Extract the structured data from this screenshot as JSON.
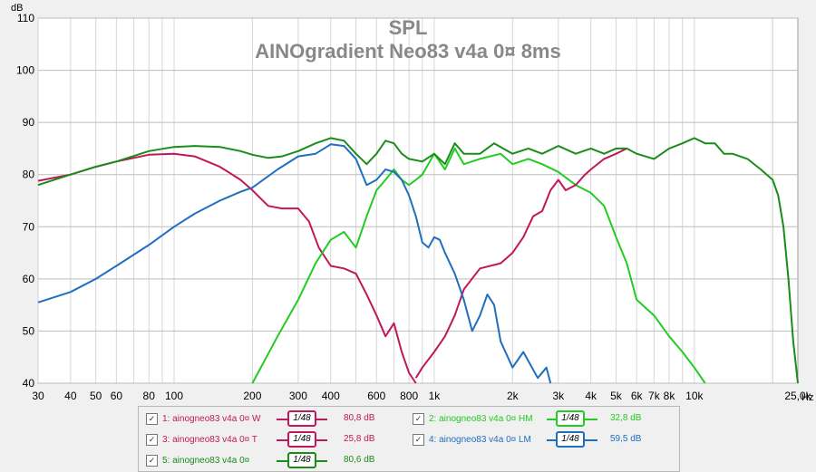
{
  "chart_data": {
    "type": "line",
    "title": "SPL",
    "subtitle": "AINOgradient Neo83 v4a 0¤ 8ms",
    "ylabel": "dB",
    "xlabel": "Hz",
    "xscale": "log",
    "xlim": [
      30,
      25000
    ],
    "ylim": [
      40,
      110
    ],
    "grid": true,
    "y_ticks": [
      "110",
      "100",
      "90",
      "80",
      "70",
      "60",
      "50",
      "40"
    ],
    "x_ticks": [
      {
        "v": 30,
        "label": "30"
      },
      {
        "v": 40,
        "label": "40"
      },
      {
        "v": 50,
        "label": "50"
      },
      {
        "v": 60,
        "label": "60"
      },
      {
        "v": 80,
        "label": "80"
      },
      {
        "v": 100,
        "label": "100"
      },
      {
        "v": 200,
        "label": "200"
      },
      {
        "v": 300,
        "label": "300"
      },
      {
        "v": 400,
        "label": "400"
      },
      {
        "v": 600,
        "label": "600"
      },
      {
        "v": 800,
        "label": "800"
      },
      {
        "v": 1000,
        "label": "1k"
      },
      {
        "v": 2000,
        "label": "2k"
      },
      {
        "v": 3000,
        "label": "3k"
      },
      {
        "v": 4000,
        "label": "4k"
      },
      {
        "v": 5000,
        "label": "5k"
      },
      {
        "v": 6000,
        "label": "6k"
      },
      {
        "v": 7000,
        "label": "7k"
      },
      {
        "v": 8000,
        "label": "8k"
      },
      {
        "v": 10000,
        "label": "10k"
      },
      {
        "v": 25000,
        "label": "25,0k"
      }
    ],
    "series": [
      {
        "id": "w",
        "color": "#c0185a",
        "points": [
          [
            30,
            78.8
          ],
          [
            40,
            80
          ],
          [
            50,
            81.5
          ],
          [
            60,
            82.5
          ],
          [
            80,
            83.8
          ],
          [
            100,
            84
          ],
          [
            120,
            83.5
          ],
          [
            150,
            81.5
          ],
          [
            180,
            79
          ],
          [
            200,
            77
          ],
          [
            230,
            74
          ],
          [
            260,
            73.5
          ],
          [
            300,
            73.5
          ],
          [
            330,
            71
          ],
          [
            360,
            66
          ],
          [
            400,
            62.5
          ],
          [
            450,
            62
          ],
          [
            500,
            61
          ],
          [
            550,
            57
          ],
          [
            600,
            53
          ],
          [
            650,
            49
          ],
          [
            700,
            51.5
          ],
          [
            750,
            46
          ],
          [
            800,
            42
          ],
          [
            850,
            40
          ]
        ]
      },
      {
        "id": "hm",
        "color": "#22cc22",
        "points": [
          [
            200,
            40
          ],
          [
            250,
            49
          ],
          [
            300,
            56
          ],
          [
            350,
            63
          ],
          [
            400,
            67.5
          ],
          [
            450,
            69
          ],
          [
            500,
            66
          ],
          [
            550,
            72
          ],
          [
            600,
            77
          ],
          [
            650,
            79
          ],
          [
            700,
            81
          ],
          [
            750,
            79
          ],
          [
            800,
            78
          ],
          [
            850,
            79
          ],
          [
            900,
            80
          ],
          [
            1000,
            84
          ],
          [
            1100,
            81
          ],
          [
            1200,
            85
          ],
          [
            1300,
            82
          ],
          [
            1500,
            83
          ],
          [
            1800,
            84
          ],
          [
            2000,
            82
          ],
          [
            2300,
            83
          ],
          [
            2600,
            82
          ],
          [
            3000,
            80.5
          ],
          [
            3500,
            78
          ],
          [
            4000,
            76.5
          ],
          [
            4500,
            74
          ],
          [
            5000,
            68
          ],
          [
            5500,
            63
          ],
          [
            6000,
            56
          ],
          [
            7000,
            53
          ],
          [
            8000,
            49
          ],
          [
            9000,
            46
          ],
          [
            10000,
            43
          ],
          [
            11000,
            40
          ]
        ]
      },
      {
        "id": "t",
        "color": "#c0185a",
        "points": [
          [
            850,
            41
          ],
          [
            900,
            43
          ],
          [
            1000,
            46
          ],
          [
            1100,
            49
          ],
          [
            1200,
            53
          ],
          [
            1300,
            58
          ],
          [
            1500,
            62
          ],
          [
            1800,
            63
          ],
          [
            2000,
            65
          ],
          [
            2200,
            68
          ],
          [
            2400,
            72
          ],
          [
            2600,
            73
          ],
          [
            2800,
            77
          ],
          [
            3000,
            79
          ],
          [
            3200,
            77
          ],
          [
            3500,
            78
          ],
          [
            3800,
            80
          ],
          [
            4000,
            81
          ],
          [
            4500,
            83
          ],
          [
            5000,
            84
          ],
          [
            5500,
            85
          ]
        ]
      },
      {
        "id": "lm",
        "color": "#1f6fbf",
        "points": [
          [
            30,
            55.5
          ],
          [
            40,
            57.5
          ],
          [
            50,
            60
          ],
          [
            60,
            62.5
          ],
          [
            80,
            66.5
          ],
          [
            100,
            70
          ],
          [
            120,
            72.5
          ],
          [
            150,
            75
          ],
          [
            180,
            76.7
          ],
          [
            200,
            77.5
          ],
          [
            250,
            81
          ],
          [
            300,
            83.5
          ],
          [
            350,
            84
          ],
          [
            400,
            85.8
          ],
          [
            450,
            85.5
          ],
          [
            500,
            83
          ],
          [
            550,
            78
          ],
          [
            600,
            79
          ],
          [
            650,
            81
          ],
          [
            700,
            80.5
          ],
          [
            750,
            79
          ],
          [
            800,
            76
          ],
          [
            850,
            72
          ],
          [
            900,
            67
          ],
          [
            950,
            66
          ],
          [
            1000,
            68
          ],
          [
            1050,
            67.5
          ],
          [
            1100,
            65
          ],
          [
            1200,
            61
          ],
          [
            1300,
            56
          ],
          [
            1400,
            50
          ],
          [
            1500,
            53
          ],
          [
            1600,
            57
          ],
          [
            1700,
            55
          ],
          [
            1800,
            48
          ],
          [
            2000,
            43
          ],
          [
            2200,
            46
          ],
          [
            2500,
            41
          ],
          [
            2700,
            43
          ],
          [
            2800,
            40
          ]
        ]
      },
      {
        "id": "sum",
        "color": "#1a8c1a",
        "points": [
          [
            30,
            78
          ],
          [
            40,
            80
          ],
          [
            50,
            81.5
          ],
          [
            60,
            82.5
          ],
          [
            80,
            84.5
          ],
          [
            100,
            85.3
          ],
          [
            120,
            85.5
          ],
          [
            150,
            85.3
          ],
          [
            180,
            84.5
          ],
          [
            200,
            83.8
          ],
          [
            230,
            83.2
          ],
          [
            260,
            83.5
          ],
          [
            300,
            84.5
          ],
          [
            350,
            86
          ],
          [
            400,
            87
          ],
          [
            450,
            86.5
          ],
          [
            500,
            84
          ],
          [
            550,
            82
          ],
          [
            600,
            84
          ],
          [
            650,
            86.5
          ],
          [
            700,
            86
          ],
          [
            750,
            84
          ],
          [
            800,
            83
          ],
          [
            900,
            82.5
          ],
          [
            1000,
            84
          ],
          [
            1100,
            82
          ],
          [
            1200,
            86
          ],
          [
            1300,
            84
          ],
          [
            1500,
            84
          ],
          [
            1700,
            86
          ],
          [
            2000,
            84
          ],
          [
            2300,
            85
          ],
          [
            2600,
            84
          ],
          [
            3000,
            85.5
          ],
          [
            3500,
            84
          ],
          [
            4000,
            85
          ],
          [
            4500,
            84
          ],
          [
            5000,
            85
          ],
          [
            5500,
            85
          ],
          [
            6000,
            84
          ],
          [
            7000,
            83
          ],
          [
            8000,
            85
          ],
          [
            9000,
            86
          ],
          [
            10000,
            87
          ],
          [
            11000,
            86
          ],
          [
            12000,
            86
          ],
          [
            13000,
            84
          ],
          [
            14000,
            84
          ],
          [
            16000,
            83
          ],
          [
            18000,
            81
          ],
          [
            20000,
            79
          ],
          [
            21000,
            76
          ],
          [
            22000,
            70
          ],
          [
            23000,
            60
          ],
          [
            24000,
            48
          ],
          [
            25000,
            40
          ]
        ]
      }
    ]
  },
  "legend": [
    {
      "label": "1: ainogneo83 v4a 0¤ W",
      "badge": "1/48",
      "value": "80,8 dB",
      "color": "#c0185a",
      "checkmark": "✓"
    },
    {
      "label": "2: ainogneo83 v4a 0¤ HM",
      "badge": "1/48",
      "value": "32,8 dB",
      "color": "#22cc22",
      "checkmark": "✓"
    },
    {
      "label": "3: ainogneo83 v4a 0¤ T",
      "badge": "1/48",
      "value": "25,8 dB",
      "color": "#c0185a",
      "checkmark": "✓"
    },
    {
      "label": "4: ainogneo83 v4a 0¤ LM",
      "badge": "1/48",
      "value": "59,5 dB",
      "color": "#1f6fbf",
      "checkmark": "✓"
    },
    {
      "label": "5: ainogneo83 v4a 0¤",
      "badge": "1/48",
      "value": "80,6 dB",
      "color": "#1a8c1a",
      "checkmark": "✓"
    }
  ]
}
